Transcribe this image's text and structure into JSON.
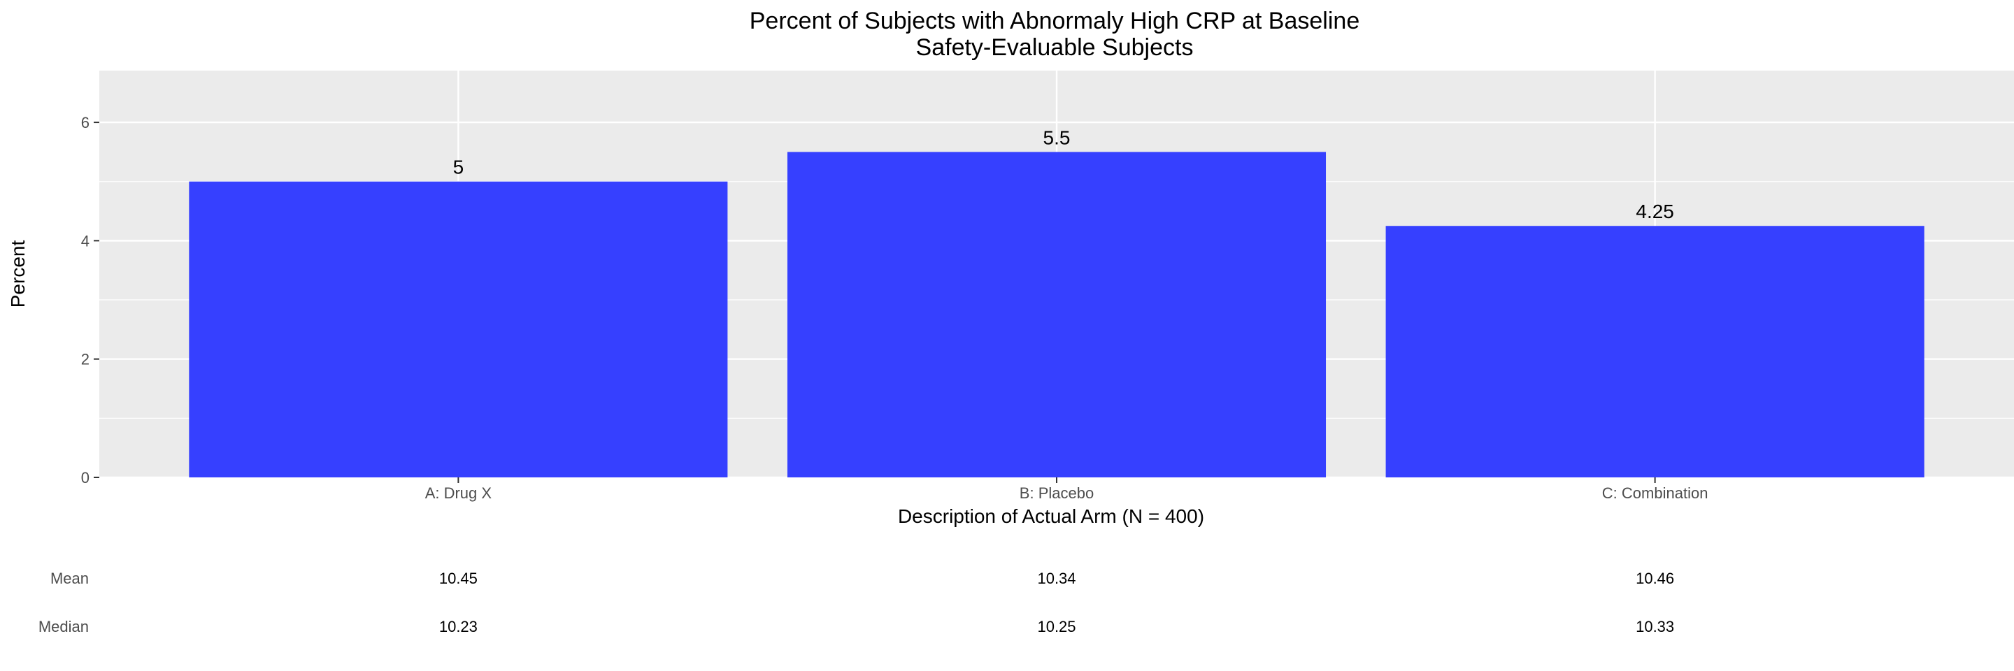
{
  "chart_data": {
    "type": "bar",
    "title": "Percent of Subjects with Abnormaly High CRP at Baseline",
    "subtitle": "Safety-Evaluable Subjects",
    "xlabel": "Description of Actual Arm (N = 400)",
    "ylabel": "Percent",
    "categories": [
      "A: Drug X",
      "B: Placebo",
      "C: Combination"
    ],
    "values": [
      5,
      5.5,
      4.25
    ],
    "data_labels": [
      "5",
      "5.5",
      "4.25"
    ],
    "ylim": [
      0,
      6.875
    ],
    "yticks": [
      0,
      2,
      4,
      6
    ],
    "ytick_labels": [
      "0",
      "2",
      "4",
      "6"
    ],
    "grid": true,
    "bar_color": "#3640FF",
    "panel_background": "#EBEBEB",
    "grid_color": "#FFFFFF",
    "legend": "none"
  },
  "summary_table": {
    "rows": [
      {
        "label": "Mean",
        "values": [
          "10.45",
          "10.34",
          "10.46"
        ]
      },
      {
        "label": "Median",
        "values": [
          "10.23",
          "10.25",
          "10.33"
        ]
      }
    ]
  }
}
